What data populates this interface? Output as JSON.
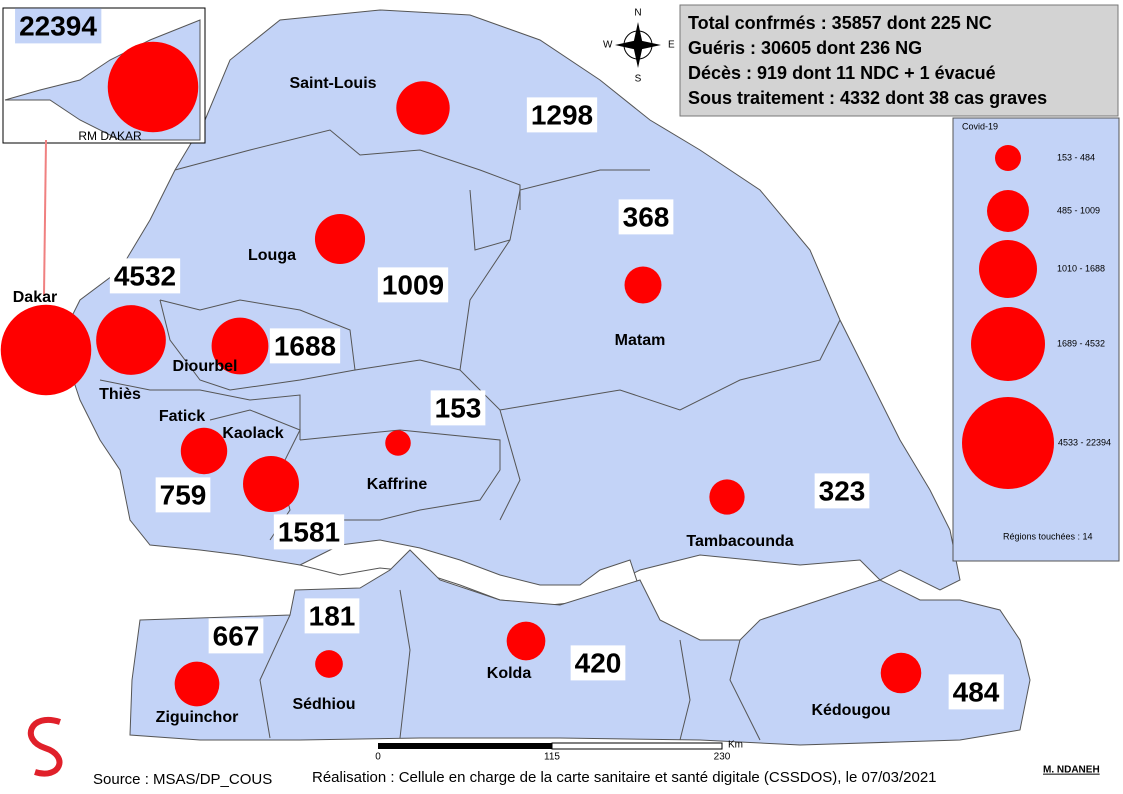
{
  "summary": [
    "Total confrmés : 35857 dont 225 NC",
    "Guéris : 30605 dont 236 NG",
    "Décès : 919 dont 11 NDC + 1 évacué",
    "Sous traitement : 4332 dont 38 cas graves"
  ],
  "inset_label": "RM DAKAR",
  "compass": {
    "n": "N",
    "s": "S",
    "e": "E",
    "w": "W"
  },
  "regions": [
    {
      "name": "Dakar",
      "cases": 22394
    },
    {
      "name": "Thiès",
      "cases": 4532
    },
    {
      "name": "Diourbel",
      "cases": 1688
    },
    {
      "name": "Saint-Louis",
      "cases": 1298
    },
    {
      "name": "Louga",
      "cases": 1009
    },
    {
      "name": "Matam",
      "cases": 368
    },
    {
      "name": "Fatick",
      "cases": 759
    },
    {
      "name": "Kaolack",
      "cases": 1581
    },
    {
      "name": "Kaffrine",
      "cases": 153
    },
    {
      "name": "Tambacounda",
      "cases": 323
    },
    {
      "name": "Ziguinchor",
      "cases": 667
    },
    {
      "name": "Sédhiou",
      "cases": 181
    },
    {
      "name": "Kolda",
      "cases": 420
    },
    {
      "name": "Kédougou",
      "cases": 484
    }
  ],
  "legend": {
    "title": "Covid-19",
    "classes": [
      "153 - 484",
      "485 - 1009",
      "1010 - 1688",
      "1689 - 4532",
      "4533 - 22394"
    ],
    "note": "Régions touchées : 14"
  },
  "scale": {
    "ticks": [
      "0",
      "115",
      "230"
    ],
    "unit": "Km"
  },
  "source": "Source : MSAS/DP_COUS",
  "credit": "Réalisation : Cellule en charge de la carte sanitaire et santé digitale (CSSDOS), le 07/03/2021",
  "author": "M. NDANEH"
}
